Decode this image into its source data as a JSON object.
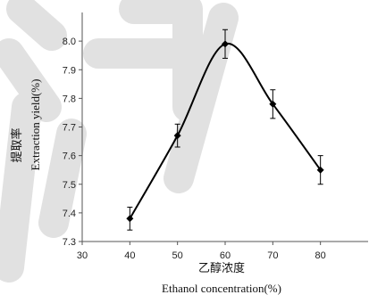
{
  "chart_data": {
    "type": "line",
    "x": [
      40,
      50,
      60,
      70,
      80
    ],
    "series": [
      {
        "values": [
          7.38,
          7.67,
          7.99,
          7.78,
          7.55
        ],
        "errors": [
          0.04,
          0.04,
          0.05,
          0.05,
          0.05
        ]
      }
    ],
    "xlim": [
      30,
      90
    ],
    "ylim": [
      7.3,
      8.1
    ],
    "xticks": [
      "30",
      "40",
      "50",
      "60",
      "70",
      "80"
    ],
    "yticks": [
      "7.3",
      "7.4",
      "7.5",
      "7.6",
      "7.7",
      "7.8",
      "7.9",
      "8.0"
    ],
    "xlabel_cn": "乙醇浓度",
    "xlabel_en": "Ethanol concentration(%)",
    "ylabel_cn": "提取率",
    "ylabel_en": "Extraction yield(%)",
    "grid": false,
    "line_color": "#000000"
  }
}
